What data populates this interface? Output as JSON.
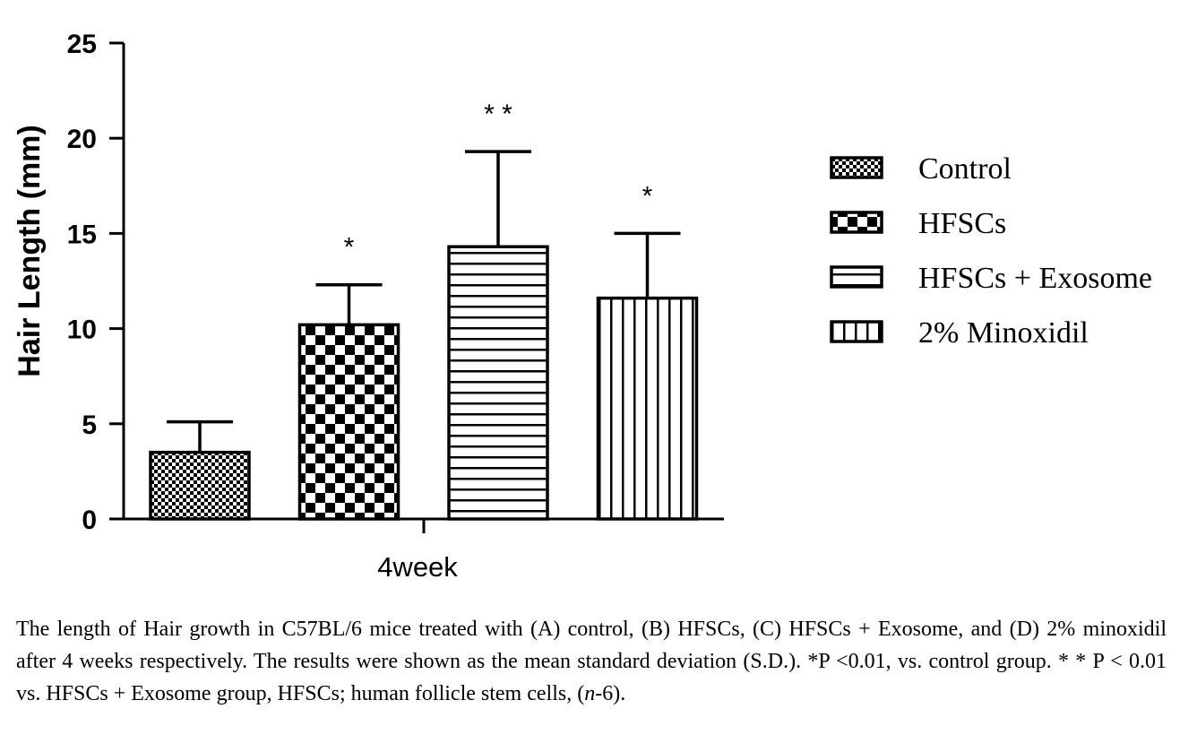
{
  "chart_data": {
    "type": "bar",
    "title": "",
    "xlabel": "",
    "ylabel": "Hair Length (mm)",
    "ylim": [
      0,
      25
    ],
    "yticks": [
      "0",
      "5",
      "10",
      "15",
      "20",
      "25"
    ],
    "group_label": "4week",
    "grid": false,
    "legend_position": "right",
    "series": [
      {
        "name": "Control",
        "value": 3.5,
        "error": 1.6,
        "significance": "",
        "pattern": "fine-checker"
      },
      {
        "name": "HFSCs",
        "value": 10.2,
        "error": 2.1,
        "significance": "*",
        "pattern": "checker"
      },
      {
        "name": "HFSCs + Exosome",
        "value": 14.3,
        "error": 5.0,
        "significance": "* *",
        "pattern": "horizontal-lines"
      },
      {
        "name": "2% Minoxidil",
        "value": 11.6,
        "error": 3.4,
        "significance": "*",
        "pattern": "vertical-lines"
      }
    ]
  },
  "caption": {
    "part1": "The length of Hair growth in C57BL/6 mice treated with (A) control, (B) HFSCs, (C) HFSCs + Exosome, and (D) 2% minoxidil after 4 weeks respectively. The results were shown as the mean standard deviation (S.D.). *P <0.01, vs. control group. * * P < 0.01 vs. HFSCs + Exosome  group, HFSCs; human follicle stem cells, (",
    "n_italic": "n",
    "part2": "-6)."
  }
}
